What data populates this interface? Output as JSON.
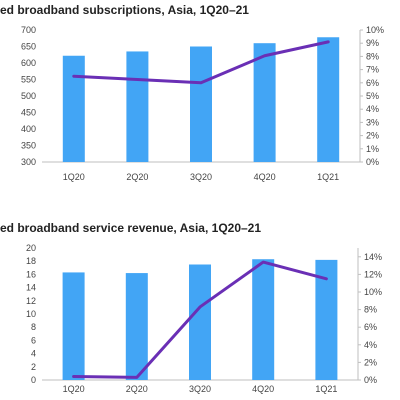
{
  "colors": {
    "bar": "#42A5F5",
    "line": "#6A2FB5",
    "grid": "#D9D9D9",
    "axis": "#BFBFBF"
  },
  "chart_data": [
    {
      "type": "bar",
      "title": "ed broadband subscriptions, Asia, 1Q20–21",
      "categories": [
        "1Q20",
        "2Q20",
        "3Q20",
        "4Q20",
        "1Q21"
      ],
      "series": [
        {
          "type": "bar",
          "axis": "left",
          "values": [
            622,
            635,
            650,
            660,
            678
          ]
        },
        {
          "type": "line",
          "axis": "right",
          "values": [
            0.065,
            0.0625,
            0.06,
            0.0805,
            0.091
          ]
        }
      ],
      "ylim_left": [
        300,
        700
      ],
      "ytick_labels_left": [
        "300",
        "350",
        "400",
        "450",
        "500",
        "550",
        "600",
        "650",
        "700"
      ],
      "ylim_right": [
        0,
        0.1
      ],
      "ytick_labels_right": [
        "0%",
        "1%",
        "2%",
        "3%",
        "4%",
        "5%",
        "6%",
        "7%",
        "8%",
        "9%",
        "10%"
      ],
      "grid": false
    },
    {
      "type": "bar",
      "title": "ed broadband service revenue, Asia, 1Q20–21",
      "categories": [
        "1Q20",
        "2Q20",
        "3Q20",
        "4Q20",
        "1Q21"
      ],
      "series": [
        {
          "type": "bar",
          "axis": "left",
          "values": [
            16.3,
            16.2,
            17.5,
            18.3,
            18.2
          ]
        },
        {
          "type": "line",
          "axis": "right",
          "values": [
            0.004,
            0.003,
            0.083,
            0.134,
            0.115
          ]
        }
      ],
      "ylim_left": [
        0,
        20
      ],
      "ytick_labels_left": [
        "0",
        "2",
        "4",
        "6",
        "8",
        "10",
        "12",
        "14",
        "16",
        "18",
        "20"
      ],
      "ylim_right": [
        0,
        0.15
      ],
      "ytick_labels_right": [
        "0%",
        "2%",
        "4%",
        "6%",
        "8%",
        "10%",
        "12%",
        "14%"
      ],
      "ytick_values_right": [
        0,
        0.02,
        0.04,
        0.06,
        0.08,
        0.1,
        0.12,
        0.14
      ],
      "grid": false
    }
  ]
}
